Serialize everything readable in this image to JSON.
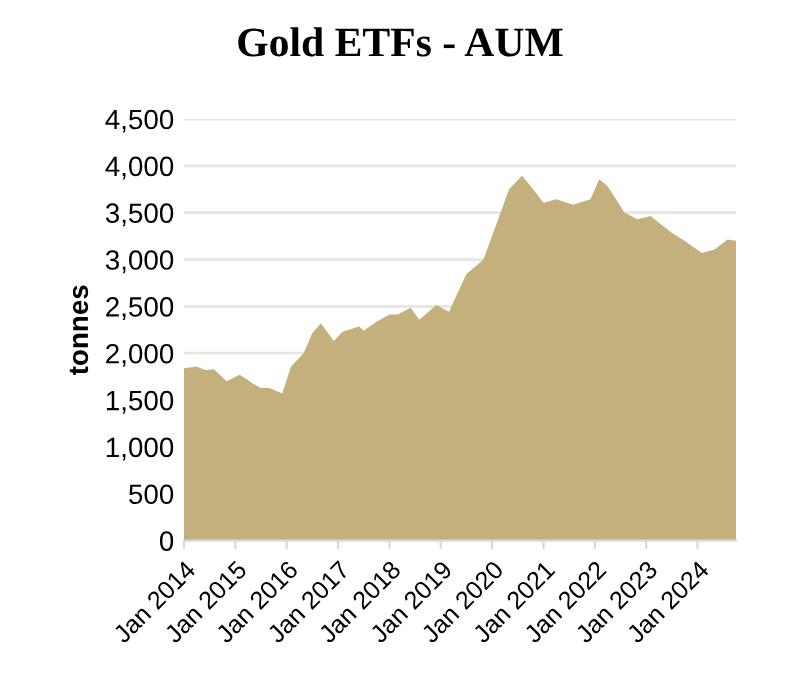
{
  "chart_data": {
    "type": "area",
    "title": "Gold ETFs - AUM",
    "ylabel": "tonnes",
    "x": [
      "2014-01",
      "2014-04",
      "2014-06",
      "2014-08",
      "2014-11",
      "2015-02",
      "2015-04",
      "2015-05",
      "2015-07",
      "2015-09",
      "2015-12",
      "2016-02",
      "2016-05",
      "2016-07",
      "2016-09",
      "2016-12",
      "2017-02",
      "2017-06",
      "2017-07",
      "2017-10",
      "2018-01",
      "2018-03",
      "2018-06",
      "2018-08",
      "2018-12",
      "2019-03",
      "2019-07",
      "2019-11",
      "2020-05",
      "2020-08",
      "2020-10",
      "2021-01",
      "2021-04",
      "2021-08",
      "2021-12",
      "2022-02",
      "2022-04",
      "2022-08",
      "2022-11",
      "2023-02",
      "2023-07",
      "2023-10",
      "2024-02",
      "2024-05",
      "2024-08",
      "2024-10"
    ],
    "series": [
      {
        "color": "#c4b07c",
        "values": [
          1840,
          1857,
          1820,
          1828,
          1700,
          1770,
          1714,
          1680,
          1630,
          1630,
          1570,
          1857,
          2000,
          2214,
          2320,
          2130,
          2230,
          2285,
          2240,
          2335,
          2414,
          2414,
          2485,
          2357,
          2514,
          2443,
          2843,
          3000,
          3750,
          3893,
          3786,
          3607,
          3643,
          3586,
          3643,
          3857,
          3786,
          3500,
          3429,
          3464,
          3286,
          3200,
          3071,
          3107,
          3214,
          3200
        ]
      }
    ],
    "xlim": [
      "2014-01",
      "2024-10"
    ],
    "xticks": [
      {
        "value": "2014-01",
        "label": "Jan 2014"
      },
      {
        "value": "2015-01",
        "label": "Jan 2015"
      },
      {
        "value": "2016-01",
        "label": "Jan 2016"
      },
      {
        "value": "2017-01",
        "label": "Jan 2017"
      },
      {
        "value": "2018-01",
        "label": "Jan 2018"
      },
      {
        "value": "2019-01",
        "label": "Jan 2019"
      },
      {
        "value": "2020-01",
        "label": "Jan 2020"
      },
      {
        "value": "2021-01",
        "label": "Jan 2021"
      },
      {
        "value": "2022-01",
        "label": "Jan 2022"
      },
      {
        "value": "2023-01",
        "label": "Jan 2023"
      },
      {
        "value": "2024-01",
        "label": "Jan 2024"
      }
    ],
    "ylim": [
      0,
      4500
    ],
    "yticks": [
      {
        "value": 0,
        "label": "0"
      },
      {
        "value": 500,
        "label": "500"
      },
      {
        "value": 1000,
        "label": "1,000"
      },
      {
        "value": 1500,
        "label": "1,500"
      },
      {
        "value": 2000,
        "label": "2,000"
      },
      {
        "value": 2500,
        "label": "2,500"
      },
      {
        "value": 3000,
        "label": "3,000"
      },
      {
        "value": 3500,
        "label": "3,500"
      },
      {
        "value": 4000,
        "label": "4,000"
      },
      {
        "value": 4500,
        "label": "4,500"
      }
    ],
    "grid": "y"
  }
}
